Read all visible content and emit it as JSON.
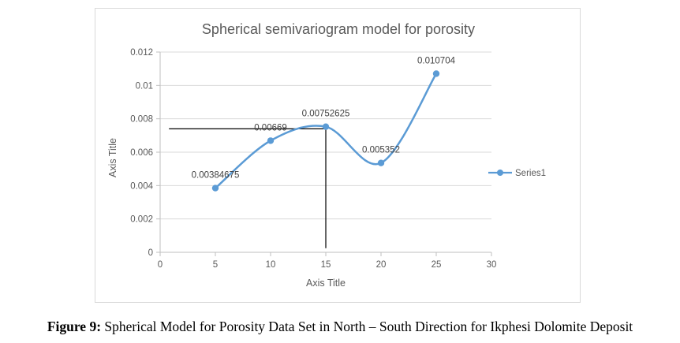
{
  "chart_data": {
    "type": "line",
    "smooth": true,
    "title": "Spherical semivariogram model for porosity",
    "xlabel": "Axis Title",
    "ylabel": "Axis Title",
    "xlim": [
      0,
      30
    ],
    "ylim": [
      0,
      0.012
    ],
    "x_ticks": [
      0,
      5,
      10,
      15,
      20,
      25,
      30
    ],
    "x_tick_labels": [
      "0",
      "5",
      "10",
      "15",
      "20",
      "25",
      "30"
    ],
    "y_ticks": [
      0,
      0.002,
      0.004,
      0.006,
      0.008,
      0.01,
      0.012
    ],
    "y_tick_labels": [
      "0",
      "0.002",
      "0.004",
      "0.006",
      "0.008",
      "0.01",
      "0.012"
    ],
    "grid": true,
    "legend": "right",
    "series": [
      {
        "name": "Series1",
        "color": "#5b9bd5",
        "x": [
          5,
          10,
          15,
          20,
          25
        ],
        "values": [
          0.00384675,
          0.00669,
          0.00752625,
          0.005352,
          0.010704
        ],
        "labels": [
          "0.00384675",
          "0.00669",
          "0.00752625",
          "0.005352",
          "0.010704"
        ]
      }
    ],
    "annotations": {
      "color": "#000000",
      "horizontal_line": {
        "y": 0.0074,
        "x_from": 0.8,
        "x_to": 15
      },
      "vertical_line": {
        "x": 15,
        "y_from": 0.0074,
        "y_to": 0.00025
      }
    }
  },
  "caption": {
    "label": "Figure 9:",
    "text": " Spherical Model for Porosity Data Set in North – South Direction for Ikphesi Dolomite Deposit"
  }
}
